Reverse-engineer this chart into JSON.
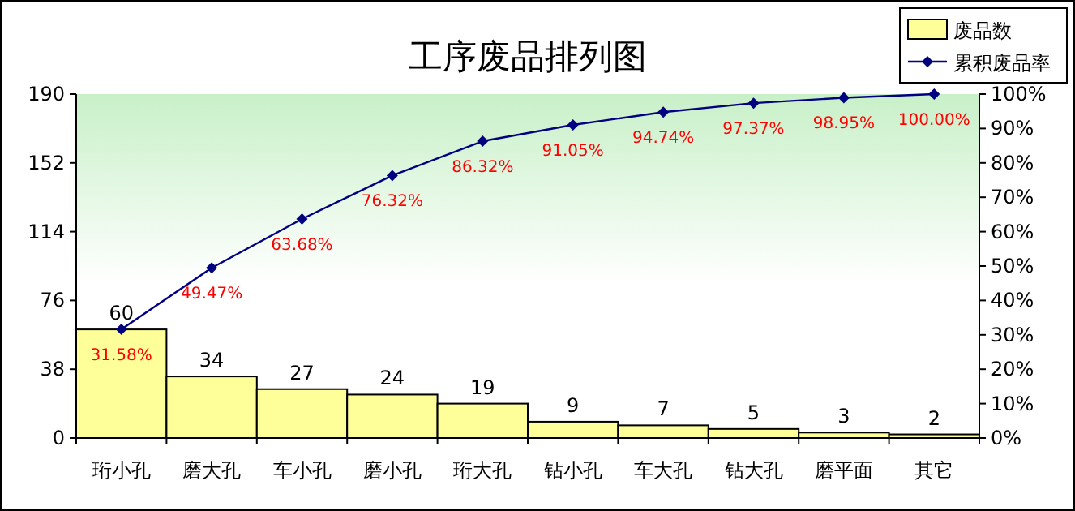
{
  "chart_data": {
    "type": "bar",
    "title": "工序废品排列图",
    "categories": [
      "珩小孔",
      "磨大孔",
      "车小孔",
      "磨小孔",
      "珩大孔",
      "钻小孔",
      "车大孔",
      "钻大孔",
      "磨平面",
      "其它"
    ],
    "series": [
      {
        "name": "废品数",
        "color": "#ffff99",
        "values": [
          60,
          34,
          27,
          24,
          19,
          9,
          7,
          5,
          3,
          2
        ]
      },
      {
        "name": "累积废品率",
        "type": "line",
        "axis": "y2",
        "color": "#000080",
        "values": [
          31.58,
          49.47,
          63.68,
          76.32,
          86.32,
          91.05,
          94.74,
          97.37,
          98.95,
          100.0
        ],
        "value_labels": [
          "31.58%",
          "49.47%",
          "63.68%",
          "76.32%",
          "86.32%",
          "91.05%",
          "94.74%",
          "97.37%",
          "98.95%",
          "100.00%"
        ]
      }
    ],
    "ylim": [
      0,
      190
    ],
    "yticks": [
      0,
      38,
      76,
      114,
      152,
      190
    ],
    "y2lim": [
      0,
      100
    ],
    "y2ticks": [
      {
        "value": 0,
        "label": "0%"
      },
      {
        "value": 10,
        "label": "10%"
      },
      {
        "value": 20,
        "label": "20%"
      },
      {
        "value": 30,
        "label": "30%"
      },
      {
        "value": 40,
        "label": "40%"
      },
      {
        "value": 50,
        "label": "50%"
      },
      {
        "value": 60,
        "label": "60%"
      },
      {
        "value": 70,
        "label": "70%"
      },
      {
        "value": 80,
        "label": "80%"
      },
      {
        "value": 90,
        "label": "90%"
      },
      {
        "value": 100,
        "label": "100%"
      }
    ],
    "data_labels": true,
    "legend": "top right",
    "marker": "diamond",
    "grid": false
  }
}
